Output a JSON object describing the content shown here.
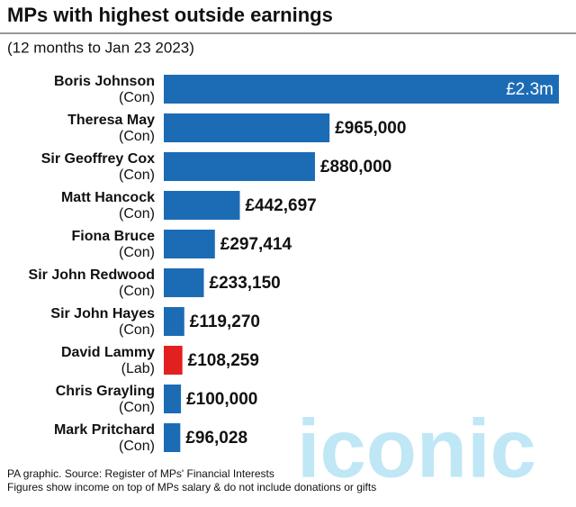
{
  "chart_data": {
    "type": "bar",
    "orientation": "horizontal",
    "title": "MPs with highest outside earnings",
    "subtitle": "(12 months to Jan 23 2023)",
    "categories": [
      "Boris Johnson",
      "Theresa May",
      "Sir Geoffrey Cox",
      "Matt Hancock",
      "Fiona Bruce",
      "Sir John Redwood",
      "Sir John Hayes",
      "David Lammy",
      "Chris Grayling",
      "Mark Pritchard"
    ],
    "parties": [
      "(Con)",
      "(Con)",
      "(Con)",
      "(Con)",
      "(Con)",
      "(Con)",
      "(Con)",
      "(Lab)",
      "(Con)",
      "(Con)"
    ],
    "values": [
      2300000,
      965000,
      880000,
      442697,
      297414,
      233150,
      119270,
      108259,
      100000,
      96028
    ],
    "value_labels": [
      "£2.3m",
      "£965,000",
      "£880,000",
      "£442,697",
      "£297,414",
      "£233,150",
      "£119,270",
      "£108,259",
      "£100,000",
      "£96,028"
    ],
    "colors": [
      "#1c6cb5",
      "#1c6cb5",
      "#1c6cb5",
      "#1c6cb5",
      "#1c6cb5",
      "#1c6cb5",
      "#1c6cb5",
      "#e1201f",
      "#1c6cb5",
      "#1c6cb5"
    ],
    "footnotes": [
      "PA graphic. Source: Register of MPs' Financial Interests",
      "Figures show income on top of MPs salary & do not include donations or gifts"
    ],
    "watermark": "iconic"
  }
}
